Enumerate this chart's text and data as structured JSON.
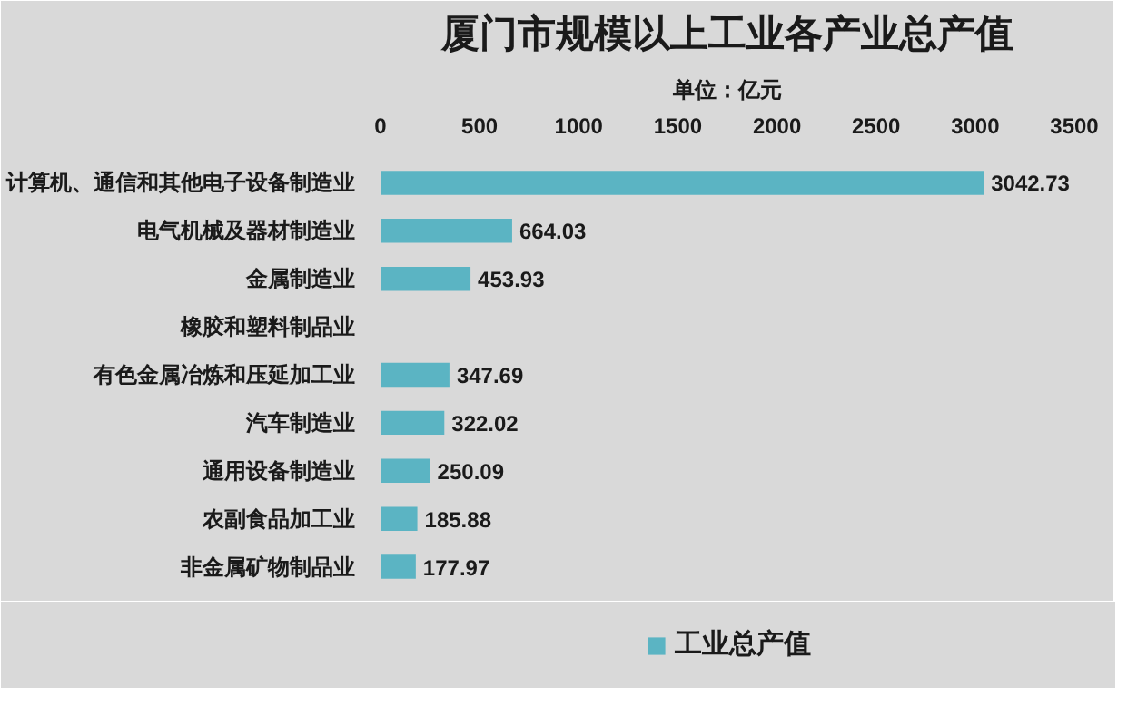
{
  "chart_data": {
    "type": "bar",
    "title": "厦门市规模以上工业各产业总产值",
    "subtitle": "单位：亿元",
    "orientation": "horizontal",
    "categories": [
      "计算机、通信和其他电子设备制造业",
      "电气机械及器材制造业",
      "金属制造业",
      "橡胶和塑料制品业",
      "有色金属冶炼和压延加工业",
      "汽车制造业",
      "通用设备制造业",
      "农副食品加工业",
      "非金属矿物制品业"
    ],
    "series": [
      {
        "name": "工业总产值",
        "color": "#5bb4c3",
        "values": [
          3042.73,
          664.03,
          453.93,
          null,
          347.69,
          322.02,
          250.09,
          185.88,
          177.97
        ]
      }
    ],
    "xlim": [
      0,
      3500
    ],
    "xticks": [
      0,
      500,
      1000,
      1500,
      2000,
      2500,
      3000,
      3500
    ],
    "data_labels": true,
    "legend": "bottom",
    "grid": false
  }
}
